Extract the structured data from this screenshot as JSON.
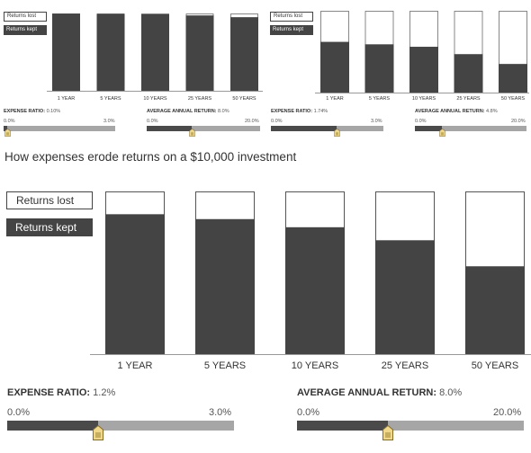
{
  "title": "How expenses erode returns on a $10,000 investment",
  "legend": {
    "lost": "Returns lost",
    "kept": "Returns kept"
  },
  "colors": {
    "kept": "#444444",
    "lost": "#ffffff",
    "track": "#a6a6a6",
    "thumb": "#f0d88a"
  },
  "chart_data": [
    {
      "type": "bar",
      "stacked": true,
      "categories": [
        "1 YEAR",
        "5 YEARS",
        "10 YEARS",
        "25 YEARS",
        "50 YEARS"
      ],
      "series": [
        {
          "name": "Returns kept",
          "values": [
            99.9,
            99.5,
            99.0,
            97.5,
            95.2
          ]
        },
        {
          "name": "Returns lost",
          "values": [
            0.1,
            0.5,
            1.0,
            2.5,
            4.8
          ]
        }
      ],
      "ylim": [
        0,
        100
      ],
      "controls": {
        "expense": {
          "label": "EXPENSE RATIO:",
          "value": "0.10%",
          "min": "0.0%",
          "max": "3.0%",
          "fraction": 0.033
        },
        "return": {
          "label": "AVERAGE ANNUAL RETURN:",
          "value": "8.0%",
          "min": "0.0%",
          "max": "20.0%",
          "fraction": 0.4
        }
      }
    },
    {
      "type": "bar",
      "stacked": true,
      "categories": [
        "1 YEAR",
        "5 YEARS",
        "10 YEARS",
        "25 YEARS",
        "50 YEARS"
      ],
      "series": [
        {
          "name": "Returns kept",
          "values": [
            62,
            59,
            56,
            47,
            35
          ]
        },
        {
          "name": "Returns lost",
          "values": [
            38,
            41,
            44,
            53,
            65
          ]
        }
      ],
      "ylim": [
        0,
        100
      ],
      "controls": {
        "expense": {
          "label": "EXPENSE RATIO:",
          "value": "1.74%",
          "min": "0.0%",
          "max": "3.0%",
          "fraction": 0.58
        },
        "return": {
          "label": "AVERAGE ANNUAL RETURN:",
          "value": "4.8%",
          "min": "0.0%",
          "max": "20.0%",
          "fraction": 0.24
        }
      }
    },
    {
      "type": "bar",
      "stacked": true,
      "categories": [
        "1 YEAR",
        "5 YEARS",
        "10 YEARS",
        "25 YEARS",
        "50 YEARS"
      ],
      "series": [
        {
          "name": "Returns kept",
          "values": [
            86,
            83,
            78,
            70,
            54
          ]
        },
        {
          "name": "Returns lost",
          "values": [
            14,
            17,
            22,
            30,
            46
          ]
        }
      ],
      "ylim": [
        0,
        100
      ],
      "controls": {
        "expense": {
          "label": "EXPENSE RATIO:",
          "value": "1.2%",
          "min": "0.0%",
          "max": "3.0%",
          "fraction": 0.4
        },
        "return": {
          "label": "AVERAGE ANNUAL RETURN:",
          "value": "8.0%",
          "min": "0.0%",
          "max": "20.0%",
          "fraction": 0.4
        }
      }
    }
  ]
}
